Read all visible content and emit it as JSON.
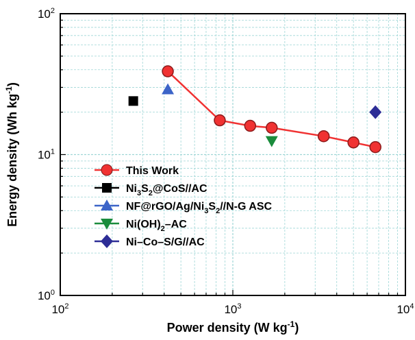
{
  "chart_data": {
    "type": "scatter",
    "xscale": "log",
    "yscale": "log",
    "xlim": [
      100,
      10000
    ],
    "ylim": [
      1,
      100
    ],
    "grid": true,
    "legend_position": "bottom-left",
    "xlabel": {
      "base": "Power density (W kg",
      "sup": "-1",
      "tail": ")"
    },
    "ylabel": {
      "base": "Energy density (Wh kg",
      "sup": "-1",
      "tail": ")"
    },
    "xticks": [
      {
        "value": 100,
        "base": "10",
        "exp": "2"
      },
      {
        "value": 1000,
        "base": "10",
        "exp": "3"
      },
      {
        "value": 10000,
        "base": "10",
        "exp": "4"
      }
    ],
    "yticks": [
      {
        "value": 1,
        "base": "10",
        "exp": "0"
      },
      {
        "value": 10,
        "base": "10",
        "exp": "1"
      },
      {
        "value": 100,
        "base": "10",
        "exp": "2"
      }
    ],
    "series": [
      {
        "key": "this-work",
        "marker": "circle",
        "color": "#f03232",
        "line": true,
        "legend": [
          {
            "t": "This Work"
          }
        ],
        "points": [
          [
            420,
            39
          ],
          [
            840,
            17.5
          ],
          [
            1260,
            16
          ],
          [
            1680,
            15.5
          ],
          [
            3360,
            13.5
          ],
          [
            5000,
            12.2
          ],
          [
            6700,
            11.3
          ]
        ]
      },
      {
        "key": "ni3s2-cos-ac",
        "marker": "square",
        "color": "#000000",
        "line": false,
        "legend": [
          {
            "t": "Ni"
          },
          {
            "t": "3",
            "sub": true
          },
          {
            "t": "S"
          },
          {
            "t": "2",
            "sub": true
          },
          {
            "t": "@CoS//AC"
          }
        ],
        "points": [
          [
            265,
            24
          ]
        ]
      },
      {
        "key": "nf-rgo-ag",
        "marker": "triangle-up",
        "color": "#3c64c8",
        "line": false,
        "legend": [
          {
            "t": "NF@rGO/Ag/Ni"
          },
          {
            "t": "3",
            "sub": true
          },
          {
            "t": "S"
          },
          {
            "t": "2",
            "sub": true
          },
          {
            "t": "//N-G ASC"
          }
        ],
        "points": [
          [
            420,
            29
          ]
        ]
      },
      {
        "key": "nioh2-ac",
        "marker": "triangle-down",
        "color": "#1a8c3c",
        "line": false,
        "legend": [
          {
            "t": "Ni(OH)"
          },
          {
            "t": "2",
            "sub": true
          },
          {
            "t": "–AC"
          }
        ],
        "points": [
          [
            1680,
            12.5
          ]
        ]
      },
      {
        "key": "ni-co-s-g-ac",
        "marker": "diamond",
        "color": "#2d2d96",
        "line": false,
        "legend": [
          {
            "t": "Ni–Co–S/G//AC"
          }
        ],
        "points": [
          [
            6700,
            20
          ]
        ]
      }
    ],
    "colors": {
      "grid": "#9ed6d6",
      "axis": "#000000"
    }
  }
}
